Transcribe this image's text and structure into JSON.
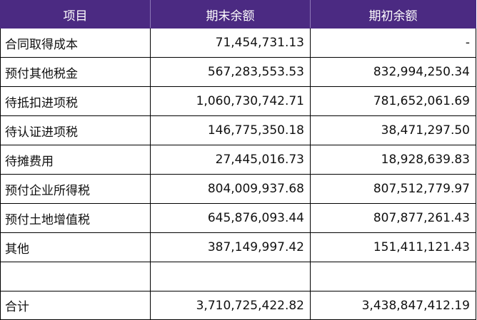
{
  "columns": [
    "项目",
    "期末余额",
    "期初余额"
  ],
  "rows": [
    [
      "合同取得成本",
      "71,454,731.13",
      "-"
    ],
    [
      "预付其他税金",
      "567,283,553.53",
      "832,994,250.34"
    ],
    [
      "待抵扣进项税",
      "1,060,730,742.71",
      "781,652,061.69"
    ],
    [
      "待认证进项税",
      "146,775,350.18",
      "38,471,297.50"
    ],
    [
      "待摊费用",
      "27,445,016.73",
      "18,928,639.83"
    ],
    [
      "预付企业所得税",
      "804,009,937.68",
      "807,512,779.97"
    ],
    [
      "预付土地增值税",
      "645,876,093.44",
      "807,877,261.43"
    ],
    [
      "其他",
      "387,149,997.42",
      "151,411,121.43"
    ],
    [
      "",
      "",
      ""
    ],
    [
      "合计",
      "3,710,725,422.82",
      "3,438,847,412.19"
    ]
  ],
  "colors": {
    "header_background": "#4b2a82",
    "header_text": "#ffffff",
    "border": "#000000"
  }
}
